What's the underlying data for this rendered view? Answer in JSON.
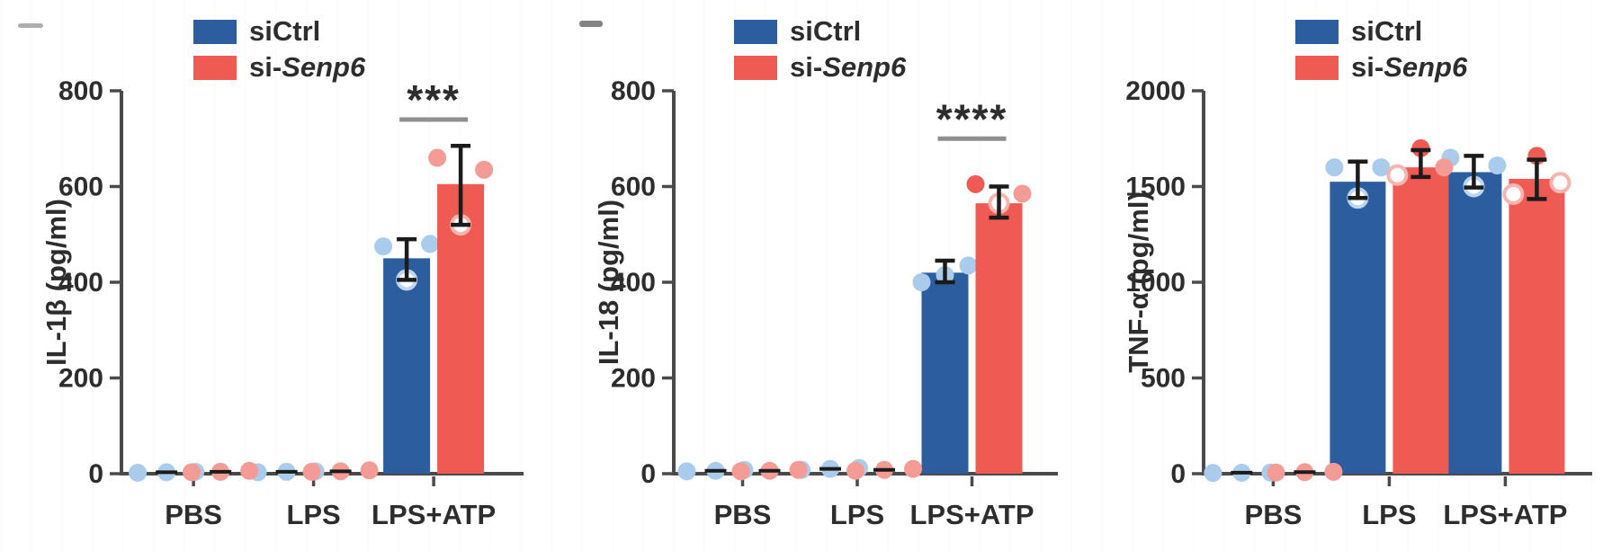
{
  "figure": {
    "background": "#FFFFFF",
    "colors": {
      "axis": "#4A4A4A",
      "text": "#2D2D2D",
      "error_bar": "#1B1B1B",
      "sig_line": "#8F8F8F",
      "artifact": "#8E8E8E"
    },
    "legend": {
      "siCtrl_label": "siCtrl",
      "siSenp6_prefix": "si-",
      "siSenp6_italic": "Senp6"
    }
  },
  "chart_data": [
    {
      "type": "bar",
      "title": "",
      "xlabel": "",
      "ylabel": "IL-1β (pg/ml)",
      "categories": [
        "PBS",
        "LPS",
        "LPS+ATP"
      ],
      "ylim": [
        0,
        800
      ],
      "yticks": [
        0,
        200,
        400,
        600,
        800
      ],
      "grid": false,
      "legend_position": "top",
      "series": [
        {
          "name": "siCtrl",
          "color": "#2B5D9F",
          "light_color": "#A9CBEC",
          "open_stroke": "#BCD5F1",
          "values": [
            3,
            4,
            450
          ],
          "err_low": [
            1,
            2,
            405
          ],
          "err_high": [
            6,
            7,
            490
          ],
          "points": [
            [
              {
                "v": 2,
                "style": "light"
              },
              {
                "v": 4,
                "style": "light"
              },
              {
                "v": 3,
                "style": "light"
              }
            ],
            [
              {
                "v": 3,
                "style": "light"
              },
              {
                "v": 5,
                "style": "light"
              },
              {
                "v": 4,
                "style": "light"
              }
            ],
            [
              {
                "v": 475,
                "style": "light"
              },
              {
                "v": 480,
                "style": "light"
              },
              {
                "v": 405,
                "style": "open"
              }
            ]
          ]
        },
        {
          "name": "si-Senp6",
          "color": "#EF5A53",
          "light_color": "#F59B95",
          "open_stroke": "#F7B4AF",
          "values": [
            4,
            5,
            605
          ],
          "err_low": [
            2,
            3,
            520
          ],
          "err_high": [
            7,
            8,
            685
          ],
          "points": [
            [
              {
                "v": 3,
                "style": "light"
              },
              {
                "v": 6,
                "style": "light"
              },
              {
                "v": 4,
                "style": "light"
              }
            ],
            [
              {
                "v": 4,
                "style": "light"
              },
              {
                "v": 7,
                "style": "light"
              },
              {
                "v": 5,
                "style": "light"
              }
            ],
            [
              {
                "v": 660,
                "style": "light"
              },
              {
                "v": 635,
                "style": "light"
              },
              {
                "v": 520,
                "style": "open"
              }
            ]
          ]
        }
      ],
      "significance": [
        {
          "category": "LPS+ATP",
          "label": "***",
          "line_y": 740
        }
      ]
    },
    {
      "type": "bar",
      "title": "",
      "xlabel": "",
      "ylabel": "IL-18 (pg/ml)",
      "categories": [
        "PBS",
        "LPS",
        "LPS+ATP"
      ],
      "ylim": [
        0,
        800
      ],
      "yticks": [
        0,
        200,
        400,
        600,
        800
      ],
      "grid": false,
      "legend_position": "top",
      "series": [
        {
          "name": "siCtrl",
          "color": "#2B5D9F",
          "light_color": "#A9CBEC",
          "open_stroke": "#BCD5F1",
          "values": [
            6,
            10,
            420
          ],
          "err_low": [
            3,
            5,
            400
          ],
          "err_high": [
            9,
            15,
            445
          ],
          "points": [
            [
              {
                "v": 5,
                "style": "light"
              },
              {
                "v": 8,
                "style": "light"
              },
              {
                "v": 6,
                "style": "light"
              }
            ],
            [
              {
                "v": 8,
                "style": "light"
              },
              {
                "v": 12,
                "style": "light"
              },
              {
                "v": 10,
                "style": "light"
              }
            ],
            [
              {
                "v": 400,
                "style": "light"
              },
              {
                "v": 435,
                "style": "light"
              },
              {
                "v": 415,
                "style": "light"
              }
            ]
          ]
        },
        {
          "name": "si-Senp6",
          "color": "#EF5A53",
          "light_color": "#F59B95",
          "open_stroke": "#F7B4AF",
          "values": [
            6,
            8,
            565
          ],
          "err_low": [
            3,
            4,
            535
          ],
          "err_high": [
            9,
            12,
            600
          ],
          "points": [
            [
              {
                "v": 5,
                "style": "light"
              },
              {
                "v": 8,
                "style": "light"
              },
              {
                "v": 6,
                "style": "light"
              }
            ],
            [
              {
                "v": 6,
                "style": "light"
              },
              {
                "v": 10,
                "style": "light"
              },
              {
                "v": 8,
                "style": "light"
              }
            ],
            [
              {
                "v": 605,
                "style": "solid"
              },
              {
                "v": 585,
                "style": "light"
              },
              {
                "v": 565,
                "style": "open"
              }
            ]
          ]
        }
      ],
      "significance": [
        {
          "category": "LPS+ATP",
          "label": "****",
          "line_y": 700
        }
      ]
    },
    {
      "type": "bar",
      "title": "",
      "xlabel": "",
      "ylabel": "TNF-α (pg/ml)",
      "categories": [
        "PBS",
        "LPS",
        "LPS+ATP"
      ],
      "ylim": [
        0,
        2000
      ],
      "yticks": [
        0,
        500,
        1000,
        1500,
        2000
      ],
      "grid": false,
      "legend_position": "top",
      "series": [
        {
          "name": "siCtrl",
          "color": "#2B5D9F",
          "light_color": "#A9CBEC",
          "open_stroke": "#BCD5F1",
          "values": [
            5,
            1525,
            1575
          ],
          "err_low": [
            2,
            1440,
            1495
          ],
          "err_high": [
            8,
            1630,
            1660
          ],
          "points": [
            [
              {
                "v": 4,
                "style": "light"
              },
              {
                "v": 6,
                "style": "light"
              },
              {
                "v": 5,
                "style": "light"
              }
            ],
            [
              {
                "v": 1600,
                "style": "light"
              },
              {
                "v": 1600,
                "style": "light"
              },
              {
                "v": 1440,
                "style": "open"
              }
            ],
            [
              {
                "v": 1650,
                "style": "light"
              },
              {
                "v": 1610,
                "style": "light"
              },
              {
                "v": 1500,
                "style": "open"
              }
            ]
          ]
        },
        {
          "name": "si-Senp6",
          "color": "#EF5A53",
          "light_color": "#F59B95",
          "open_stroke": "#F7B4AF",
          "values": [
            8,
            1600,
            1540
          ],
          "err_low": [
            4,
            1550,
            1435
          ],
          "err_high": [
            12,
            1690,
            1640
          ],
          "points": [
            [
              {
                "v": 6,
                "style": "light"
              },
              {
                "v": 10,
                "style": "light"
              },
              {
                "v": 8,
                "style": "light"
              }
            ],
            [
              {
                "v": 1560,
                "style": "open"
              },
              {
                "v": 1600,
                "style": "light"
              },
              {
                "v": 1700,
                "style": "solid"
              }
            ],
            [
              {
                "v": 1460,
                "style": "open"
              },
              {
                "v": 1520,
                "style": "open"
              },
              {
                "v": 1660,
                "style": "solid"
              }
            ]
          ]
        }
      ],
      "significance": []
    }
  ]
}
